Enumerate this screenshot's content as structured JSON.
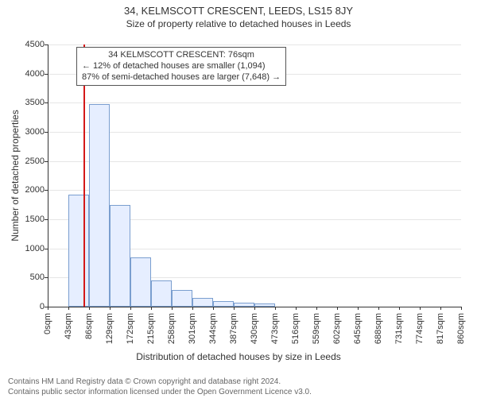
{
  "title": "34, KELMSCOTT CRESCENT, LEEDS, LS15 8JY",
  "subtitle": "Size of property relative to detached houses in Leeds",
  "chart": {
    "type": "histogram",
    "ylabel": "Number of detached properties",
    "xlabel": "Distribution of detached houses by size in Leeds",
    "ylim": [
      0,
      4500
    ],
    "ytick_step": 500,
    "yticks": [
      0,
      500,
      1000,
      1500,
      2000,
      2500,
      3000,
      3500,
      4000,
      4500
    ],
    "xticks": [
      "0sqm",
      "43sqm",
      "86sqm",
      "129sqm",
      "172sqm",
      "215sqm",
      "258sqm",
      "301sqm",
      "344sqm",
      "387sqm",
      "430sqm",
      "473sqm",
      "516sqm",
      "559sqm",
      "602sqm",
      "645sqm",
      "688sqm",
      "731sqm",
      "774sqm",
      "817sqm",
      "860sqm"
    ],
    "n_bins": 20,
    "values": [
      0,
      1920,
      3480,
      1750,
      850,
      450,
      290,
      150,
      100,
      70,
      50,
      0,
      0,
      0,
      0,
      0,
      0,
      0,
      0,
      0
    ],
    "bar_fill": "#e6eeff",
    "bar_border": "#7a9ecf",
    "grid_color": "#e6e6e6",
    "background_color": "#ffffff",
    "axis_color": "#333333",
    "tick_fontsize": 11,
    "label_fontsize": 12,
    "title_fontsize": 13,
    "marker": {
      "value_sqm": 76,
      "color": "#d41818",
      "width": 2
    },
    "annotation": {
      "lines": [
        "34 KELMSCOTT CRESCENT: 76sqm",
        "← 12% of detached houses are smaller (1,094)",
        "87% of semi-detached houses are larger (7,648) →"
      ],
      "border_color": "#555555",
      "background": "#ffffff",
      "fontsize": 11
    }
  },
  "footer": {
    "line1": "Contains HM Land Registry data © Crown copyright and database right 2024.",
    "line2": "Contains public sector information licensed under the Open Government Licence v3.0."
  }
}
